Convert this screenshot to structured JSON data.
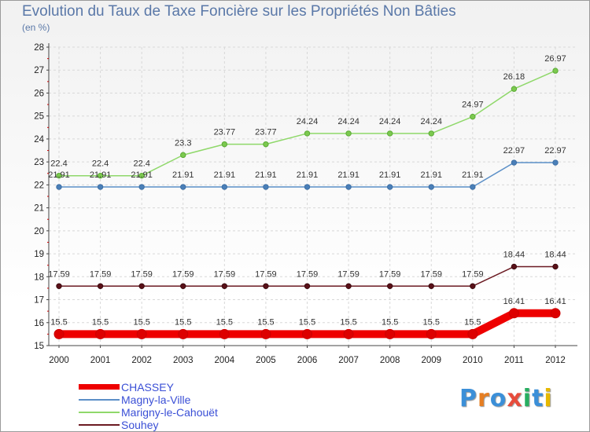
{
  "title": "Evolution du Taux de Taxe Foncière sur les Propriétés Non Bâties",
  "unit_label": "(en %)",
  "logo": {
    "text": "Proxiti",
    "colors": [
      "#3b8fd8",
      "#e67e22",
      "#3b8fd8",
      "#e74c3c",
      "#27ae60",
      "#3b8fd8",
      "#e6b800"
    ]
  },
  "chart_data": {
    "type": "line",
    "title": "Evolution du Taux de Taxe Foncière sur les Propriétés Non Bâties",
    "ylabel": "(en %)",
    "xlabel": "",
    "ylim": [
      15,
      28
    ],
    "yticks": [
      15,
      16,
      17,
      18,
      19,
      20,
      21,
      22,
      23,
      24,
      25,
      26,
      27,
      28
    ],
    "categories": [
      "2000",
      "2001",
      "2002",
      "2003",
      "2004",
      "2005",
      "2006",
      "2007",
      "2008",
      "2009",
      "2010",
      "2011",
      "2012"
    ],
    "grid": true,
    "legend_position": "bottom-left",
    "series": [
      {
        "name": "CHASSEY",
        "color": "#ee0000",
        "values": [
          15.5,
          15.5,
          15.5,
          15.5,
          15.5,
          15.5,
          15.5,
          15.5,
          15.5,
          15.5,
          15.5,
          16.41,
          16.41
        ]
      },
      {
        "name": "Magny-la-Ville",
        "color": "#5b8fc7",
        "values": [
          21.91,
          21.91,
          21.91,
          21.91,
          21.91,
          21.91,
          21.91,
          21.91,
          21.91,
          21.91,
          21.91,
          22.97,
          22.97
        ]
      },
      {
        "name": "Marigny-le-Cahouët",
        "color": "#8fd86a",
        "values": [
          22.4,
          22.4,
          22.4,
          23.3,
          23.77,
          23.77,
          24.24,
          24.24,
          24.24,
          24.24,
          24.97,
          26.18,
          26.97
        ]
      },
      {
        "name": "Souhey",
        "color": "#6b1a22",
        "values": [
          17.59,
          17.59,
          17.59,
          17.59,
          17.59,
          17.59,
          17.59,
          17.59,
          17.59,
          17.59,
          17.59,
          18.44,
          18.44
        ]
      }
    ]
  }
}
